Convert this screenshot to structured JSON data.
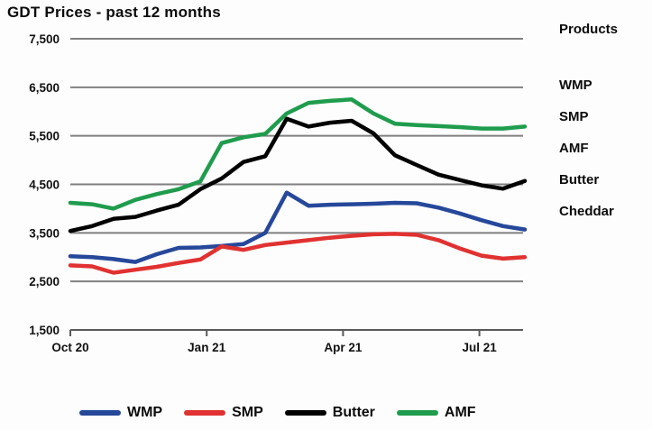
{
  "title": "GDT Prices - past 12 months",
  "products_panel": {
    "header": "Products",
    "items": [
      "WMP",
      "SMP",
      "AMF",
      "Butter",
      "Cheddar"
    ]
  },
  "legend": {
    "items": [
      {
        "label": "WMP",
        "color": "#26489a"
      },
      {
        "label": "SMP",
        "color": "#e03231"
      },
      {
        "label": "Butter",
        "color": "#000000"
      },
      {
        "label": "AMF",
        "color": "#1f9c4d"
      }
    ]
  },
  "colors": {
    "gridline": "#808080",
    "axis": "#595959",
    "text": "#111111",
    "wmp": "#26489a",
    "smp": "#e03231",
    "butter": "#000000",
    "amf": "#1f9c4d"
  },
  "chart_data": {
    "type": "line",
    "title": "GDT Prices - past 12 months",
    "xlabel": "",
    "ylabel": "",
    "ylim": [
      1500,
      7500
    ],
    "grid": true,
    "legend_position": "bottom",
    "x_axis": {
      "tick_labels": [
        "Oct 20",
        "Jan 21",
        "Apr 21",
        "Jul 21"
      ],
      "tick_positions_months": [
        0,
        3,
        6,
        9
      ],
      "domain_months": [
        0,
        10
      ]
    },
    "y_axis": {
      "tick_values": [
        7500,
        6500,
        5500,
        4500,
        3500,
        2500,
        1500
      ],
      "tick_labels": [
        "7,500",
        "6,500",
        "5,500",
        "4,500",
        "3,500",
        "2,500",
        "1,500"
      ]
    },
    "x_months": [
      0,
      0.48,
      0.95,
      1.43,
      1.9,
      2.38,
      2.86,
      3.33,
      3.81,
      4.29,
      4.76,
      5.24,
      5.71,
      6.19,
      6.67,
      7.14,
      7.62,
      8.1,
      8.57,
      9.05,
      9.52,
      10
    ],
    "series": [
      {
        "name": "WMP",
        "color": "#26489a",
        "values": [
          3020,
          3000,
          2960,
          2900,
          3060,
          3190,
          3200,
          3230,
          3270,
          3500,
          4330,
          4060,
          4080,
          4090,
          4100,
          4120,
          4110,
          4020,
          3900,
          3760,
          3640,
          3570
        ]
      },
      {
        "name": "SMP",
        "color": "#e03231",
        "values": [
          2830,
          2810,
          2680,
          2740,
          2800,
          2880,
          2950,
          3220,
          3150,
          3250,
          3300,
          3350,
          3400,
          3440,
          3470,
          3480,
          3460,
          3350,
          3180,
          3030,
          2970,
          3000
        ]
      },
      {
        "name": "Butter",
        "color": "#000000",
        "values": [
          3540,
          3640,
          3790,
          3830,
          3960,
          4080,
          4400,
          4620,
          4960,
          5080,
          5850,
          5690,
          5770,
          5810,
          5550,
          5100,
          4900,
          4700,
          4590,
          4480,
          4410,
          4570
        ]
      },
      {
        "name": "AMF",
        "color": "#1f9c4d",
        "values": [
          4120,
          4090,
          4000,
          4180,
          4300,
          4400,
          4560,
          5350,
          5470,
          5540,
          5960,
          6180,
          6220,
          6250,
          5960,
          5750,
          5720,
          5700,
          5680,
          5650,
          5650,
          5690
        ]
      }
    ]
  }
}
